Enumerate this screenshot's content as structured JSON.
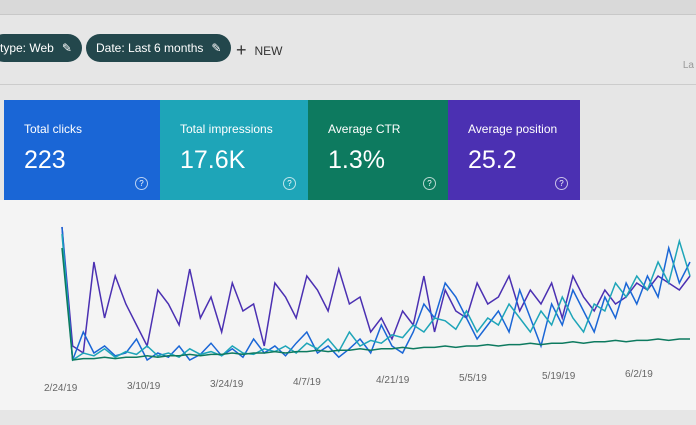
{
  "filters": [
    {
      "label": "type: Web"
    },
    {
      "label": "Date: Last 6 months"
    }
  ],
  "new_label": "NEW",
  "right_text": "La",
  "cards": [
    {
      "label": "Total clicks",
      "value": "223",
      "color": "#1a66d6"
    },
    {
      "label": "Total impressions",
      "value": "17.6K",
      "color": "#1ea5b8"
    },
    {
      "label": "Average CTR",
      "value": "1.3%",
      "color": "#0d7a5f"
    },
    {
      "label": "Average position",
      "value": "25.2",
      "color": "#4b30b2"
    }
  ],
  "chart_data": {
    "type": "line",
    "x_tick_labels": [
      "2/24/19",
      "3/10/19",
      "3/24/19",
      "4/7/19",
      "4/21/19",
      "5/5/19",
      "5/19/19",
      "6/2/19"
    ],
    "series": [
      {
        "color": "#4b30b2",
        "values": [
          95,
          10,
          5,
          70,
          30,
          60,
          40,
          25,
          10,
          50,
          40,
          25,
          65,
          30,
          45,
          20,
          55,
          35,
          40,
          10,
          55,
          45,
          30,
          60,
          50,
          35,
          65,
          40,
          45,
          20,
          30,
          15,
          35,
          25,
          60,
          20,
          50,
          35,
          30,
          55,
          40,
          45,
          60,
          35,
          50,
          40,
          55,
          30,
          60,
          45,
          35,
          50,
          40,
          45,
          55,
          50,
          60,
          55,
          50,
          60
        ]
      },
      {
        "color": "#1a66d6",
        "values": [
          95,
          0,
          20,
          5,
          10,
          3,
          5,
          15,
          0,
          5,
          2,
          10,
          0,
          4,
          12,
          3,
          8,
          2,
          15,
          5,
          10,
          3,
          12,
          20,
          5,
          10,
          2,
          8,
          15,
          5,
          25,
          10,
          5,
          20,
          40,
          30,
          55,
          45,
          30,
          15,
          25,
          35,
          20,
          50,
          30,
          10,
          40,
          25,
          50,
          35,
          20,
          45,
          30,
          55,
          40,
          60,
          45,
          80,
          55,
          70
        ]
      },
      {
        "color": "#1ea5b8",
        "values": [
          90,
          0,
          5,
          3,
          8,
          2,
          6,
          4,
          10,
          3,
          5,
          2,
          8,
          4,
          6,
          3,
          10,
          5,
          4,
          8,
          6,
          10,
          5,
          12,
          8,
          15,
          6,
          20,
          10,
          14,
          12,
          18,
          16,
          25,
          20,
          30,
          28,
          22,
          35,
          20,
          30,
          25,
          40,
          30,
          20,
          35,
          25,
          45,
          30,
          20,
          40,
          35,
          55,
          45,
          60,
          50,
          70,
          55,
          85,
          60
        ]
      },
      {
        "color": "#0d7a5f",
        "values": [
          80,
          0,
          1,
          1,
          2,
          1,
          2,
          2,
          3,
          2,
          3,
          3,
          4,
          3,
          4,
          4,
          5,
          4,
          5,
          5,
          6,
          5,
          6,
          6,
          7,
          6,
          7,
          7,
          8,
          7,
          8,
          8,
          9,
          8,
          9,
          9,
          10,
          9,
          10,
          10,
          11,
          10,
          11,
          11,
          12,
          11,
          12,
          12,
          13,
          12,
          13,
          13,
          14,
          13,
          14,
          14,
          15,
          14,
          15,
          15
        ]
      }
    ]
  }
}
